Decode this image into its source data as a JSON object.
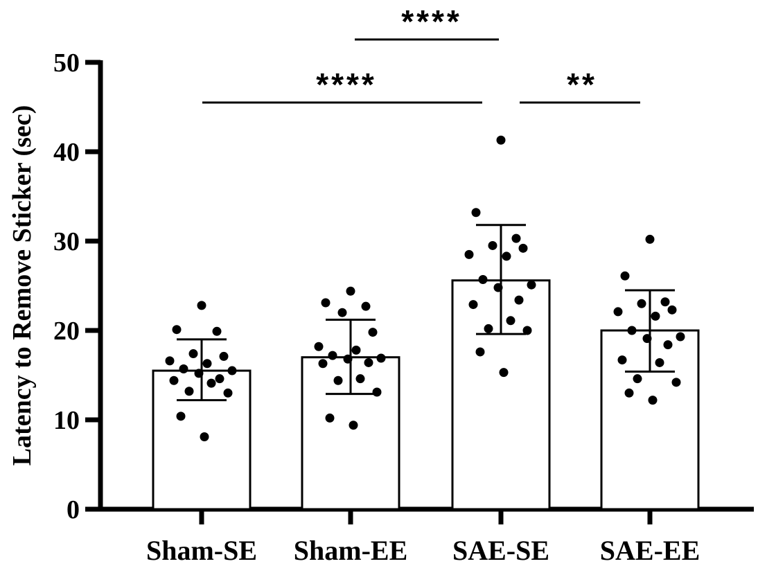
{
  "chart_data": {
    "type": "bar",
    "title": "",
    "xlabel": "",
    "ylabel": "Latency to Remove Sticker (sec)",
    "ylim": [
      0,
      50
    ],
    "yticks": [
      0,
      10,
      20,
      30,
      40,
      50
    ],
    "grid": false,
    "legend": "none",
    "categories": [
      "Sham-SE",
      "Sham-EE",
      "SAE-SE",
      "SAE-EE"
    ],
    "means": [
      15.5,
      17.0,
      25.6,
      20.0
    ],
    "error": [
      {
        "low": 12.2,
        "high": 19.0
      },
      {
        "low": 12.9,
        "high": 21.2
      },
      {
        "low": 19.6,
        "high": 31.8
      },
      {
        "low": 15.4,
        "high": 24.5
      }
    ],
    "points": [
      [
        22.8,
        20.1,
        19.9,
        17.4,
        17.1,
        16.6,
        16.3,
        15.7,
        15.5,
        15.2,
        14.6,
        14.4,
        14.1,
        13.2,
        13.0,
        10.4,
        8.1
      ],
      [
        24.4,
        23.1,
        22.7,
        22.0,
        19.8,
        18.2,
        17.8,
        17.2,
        16.9,
        16.8,
        16.4,
        16.3,
        14.6,
        14.4,
        13.1,
        10.2,
        9.4
      ],
      [
        41.3,
        33.2,
        30.3,
        29.5,
        29.2,
        28.5,
        28.3,
        25.7,
        25.1,
        24.8,
        23.4,
        22.9,
        21.1,
        20.2,
        20.0,
        17.6,
        15.3
      ],
      [
        30.2,
        26.1,
        23.2,
        23.0,
        22.3,
        22.1,
        21.6,
        20.0,
        19.3,
        19.1,
        18.4,
        16.7,
        16.4,
        14.6,
        14.2,
        13.0,
        12.2
      ]
    ],
    "significance": [
      {
        "from": 0,
        "to": 2,
        "label": "****"
      },
      {
        "from": 1,
        "to": 2,
        "label": "****"
      },
      {
        "from": 2,
        "to": 3,
        "label": "**"
      }
    ]
  }
}
